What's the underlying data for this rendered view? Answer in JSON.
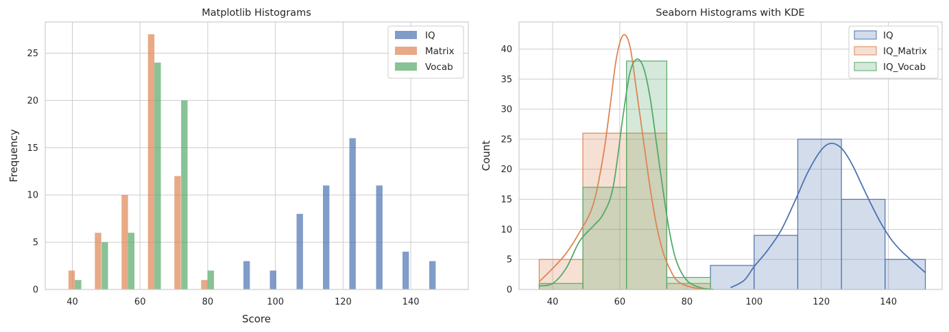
{
  "chart_data": [
    {
      "type": "bar",
      "title": "Matplotlib Histograms",
      "xlabel": "Score",
      "ylabel": "Frequency",
      "xlim": [
        32,
        157
      ],
      "ylim": [
        0,
        28.3
      ],
      "xticks": [
        40,
        60,
        80,
        100,
        120,
        140
      ],
      "yticks": [
        0,
        5,
        10,
        15,
        20,
        25
      ],
      "grid": true,
      "legend": "top-right",
      "bar_width": 1.9,
      "series": [
        {
          "name": "IQ",
          "color": "#4c72b0",
          "x": [
            91.5,
            99.3,
            107.2,
            115.0,
            122.8,
            130.7,
            138.5,
            146.4
          ],
          "values": [
            3,
            2,
            8,
            11,
            16,
            11,
            4,
            3
          ]
        },
        {
          "name": "Matrix",
          "color": "#dd8452",
          "x": [
            39.8,
            47.6,
            55.5,
            63.3,
            71.1,
            79.0
          ],
          "values": [
            2,
            6,
            10,
            27,
            12,
            1
          ]
        },
        {
          "name": "Vocab",
          "color": "#55a868",
          "x": [
            41.7,
            49.6,
            57.4,
            65.2,
            73.1,
            80.9
          ],
          "values": [
            1,
            5,
            6,
            24,
            20,
            2
          ]
        }
      ]
    },
    {
      "type": "area",
      "title": "Seaborn Histograms with KDE",
      "xlabel": "",
      "ylabel": "Count",
      "xlim": [
        30,
        156
      ],
      "ylim": [
        0,
        44.5
      ],
      "xticks": [
        40,
        60,
        80,
        100,
        120,
        140
      ],
      "yticks": [
        0,
        5,
        10,
        15,
        20,
        25,
        30,
        35,
        40
      ],
      "grid": true,
      "legend": "top-right",
      "series": [
        {
          "name": "IQ",
          "color": "#4c72b0",
          "bin_edges": [
            87,
            100,
            113,
            126,
            139,
            151
          ],
          "counts": [
            4,
            9,
            25,
            15,
            5
          ],
          "kde": [
            [
              93,
              0.3
            ],
            [
              97,
              1.5
            ],
            [
              100,
              3.8
            ],
            [
              104,
              6.5
            ],
            [
              108,
              9.8
            ],
            [
              112,
              14.5
            ],
            [
              116,
              19.5
            ],
            [
              120,
              23.2
            ],
            [
              123,
              24.3
            ],
            [
              126,
              23.5
            ],
            [
              129,
              21.0
            ],
            [
              132,
              17.5
            ],
            [
              135,
              14.0
            ],
            [
              138,
              10.8
            ],
            [
              141,
              8.2
            ],
            [
              144,
              6.3
            ],
            [
              147,
              4.8
            ],
            [
              151,
              2.8
            ]
          ]
        },
        {
          "name": "IQ_Matrix",
          "color": "#dd8452",
          "bin_edges": [
            36,
            49,
            62,
            74,
            87
          ],
          "counts": [
            5,
            26,
            26,
            1
          ],
          "kde": [
            [
              36,
              1.3
            ],
            [
              40,
              3.5
            ],
            [
              44,
              6.0
            ],
            [
              48,
              9.5
            ],
            [
              52,
              14.0
            ],
            [
              55,
              22.0
            ],
            [
              57,
              30.0
            ],
            [
              59,
              38.5
            ],
            [
              61,
              42.3
            ],
            [
              63,
              40.5
            ],
            [
              65,
              33.0
            ],
            [
              67,
              25.0
            ],
            [
              69,
              17.0
            ],
            [
              71,
              10.5
            ],
            [
              73,
              6.0
            ],
            [
              75,
              3.3
            ],
            [
              77,
              1.5
            ],
            [
              80,
              0.6
            ],
            [
              84,
              0.1
            ],
            [
              87,
              0.0
            ]
          ]
        },
        {
          "name": "IQ_Vocab",
          "color": "#55a868",
          "bin_edges": [
            36,
            49,
            62,
            74,
            87
          ],
          "counts": [
            1,
            17,
            38,
            2
          ],
          "kde": [
            [
              36,
              0.6
            ],
            [
              40,
              1.0
            ],
            [
              44,
              3.5
            ],
            [
              48,
              8.0
            ],
            [
              52,
              10.5
            ],
            [
              55,
              12.5
            ],
            [
              58,
              17.0
            ],
            [
              61,
              29.0
            ],
            [
              63,
              36.0
            ],
            [
              65,
              38.3
            ],
            [
              67,
              37.0
            ],
            [
              69,
              32.0
            ],
            [
              71,
              24.0
            ],
            [
              73,
              16.0
            ],
            [
              75,
              9.0
            ],
            [
              77,
              4.5
            ],
            [
              80,
              1.5
            ],
            [
              84,
              0.3
            ],
            [
              88,
              0.0
            ]
          ]
        }
      ]
    }
  ]
}
